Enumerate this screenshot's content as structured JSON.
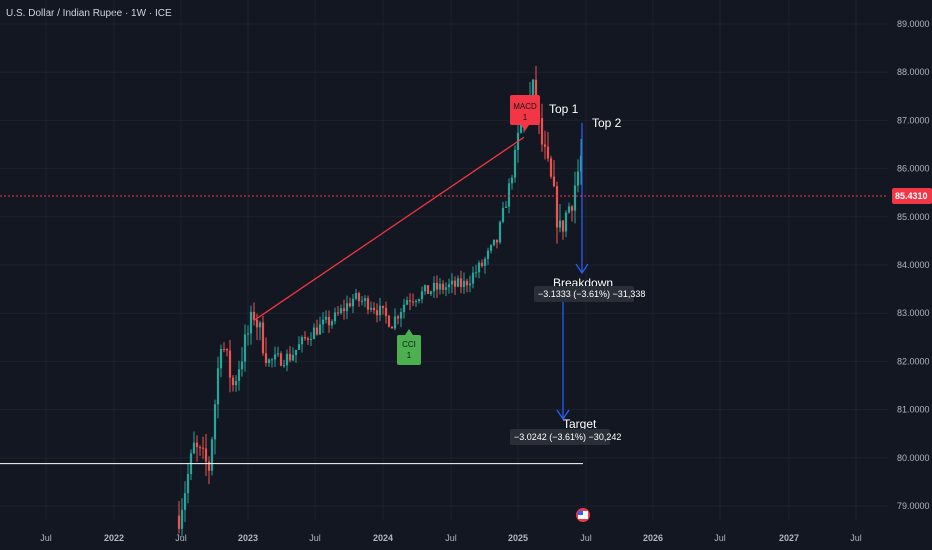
{
  "header": {
    "title": "U.S. Dollar / Indian Rupee · 1W · ICE"
  },
  "colors": {
    "up": "#26a69a",
    "down": "#ef5350",
    "trend": "#f23645",
    "arrow": "#2962ff",
    "support": "#ffffff",
    "price_tag": "#f23645",
    "cci_badge": "#4caf50",
    "macd_badge": "#f23645"
  },
  "chart_data": {
    "type": "candlestick",
    "ylim": [
      78.6,
      89.4
    ],
    "y_ticks": [
      "89.0000",
      "88.0000",
      "87.0000",
      "86.0000",
      "85.0000",
      "84.0000",
      "83.0000",
      "82.0000",
      "81.0000",
      "80.0000",
      "79.0000"
    ],
    "x_labels": [
      "Jul",
      "2022",
      "Jul",
      "2023",
      "Jul",
      "2024",
      "Jul",
      "2025",
      "Jul",
      "2026",
      "Jul",
      "2027",
      "Jul"
    ],
    "last_price": "85.4310",
    "waypoints": [
      [
        0,
        78.8
      ],
      [
        5,
        80.2
      ],
      [
        10,
        79.8
      ],
      [
        14,
        82.5
      ],
      [
        18,
        81.5
      ],
      [
        25,
        83.0
      ],
      [
        30,
        82.0
      ],
      [
        37,
        82.1
      ],
      [
        44,
        82.6
      ],
      [
        52,
        82.9
      ],
      [
        58,
        83.3
      ],
      [
        64,
        83.2
      ],
      [
        71,
        82.8
      ],
      [
        76,
        83.3
      ],
      [
        85,
        83.5
      ],
      [
        95,
        83.6
      ],
      [
        101,
        84.0
      ],
      [
        106,
        84.5
      ],
      [
        110,
        85.6
      ],
      [
        114,
        86.9
      ],
      [
        118,
        87.6
      ],
      [
        121,
        86.5
      ],
      [
        124,
        85.7
      ],
      [
        127,
        84.7
      ],
      [
        131,
        85.4
      ],
      [
        134,
        86.2
      ]
    ],
    "annotations": [
      {
        "label": "Top 1",
        "index": 118,
        "value": 87.25
      },
      {
        "label": "Top 2",
        "index": 133,
        "value": 87.0
      },
      {
        "label": "Breakdown",
        "index": 132,
        "value": 83.55
      },
      {
        "label": "Target",
        "index": 132,
        "value": 80.6
      }
    ],
    "measurements": [
      {
        "text": "−3.1333 (−3.61%) −31,338"
      },
      {
        "text": "−3.0242 (−3.61%) −30,242"
      }
    ],
    "badges": [
      {
        "label": "MACD",
        "count": "1"
      },
      {
        "label": "CCI",
        "count": "1"
      }
    ],
    "trend_line": [
      [
        25,
        82.85
      ],
      [
        115,
        86.65
      ]
    ],
    "support_level": 79.88
  }
}
